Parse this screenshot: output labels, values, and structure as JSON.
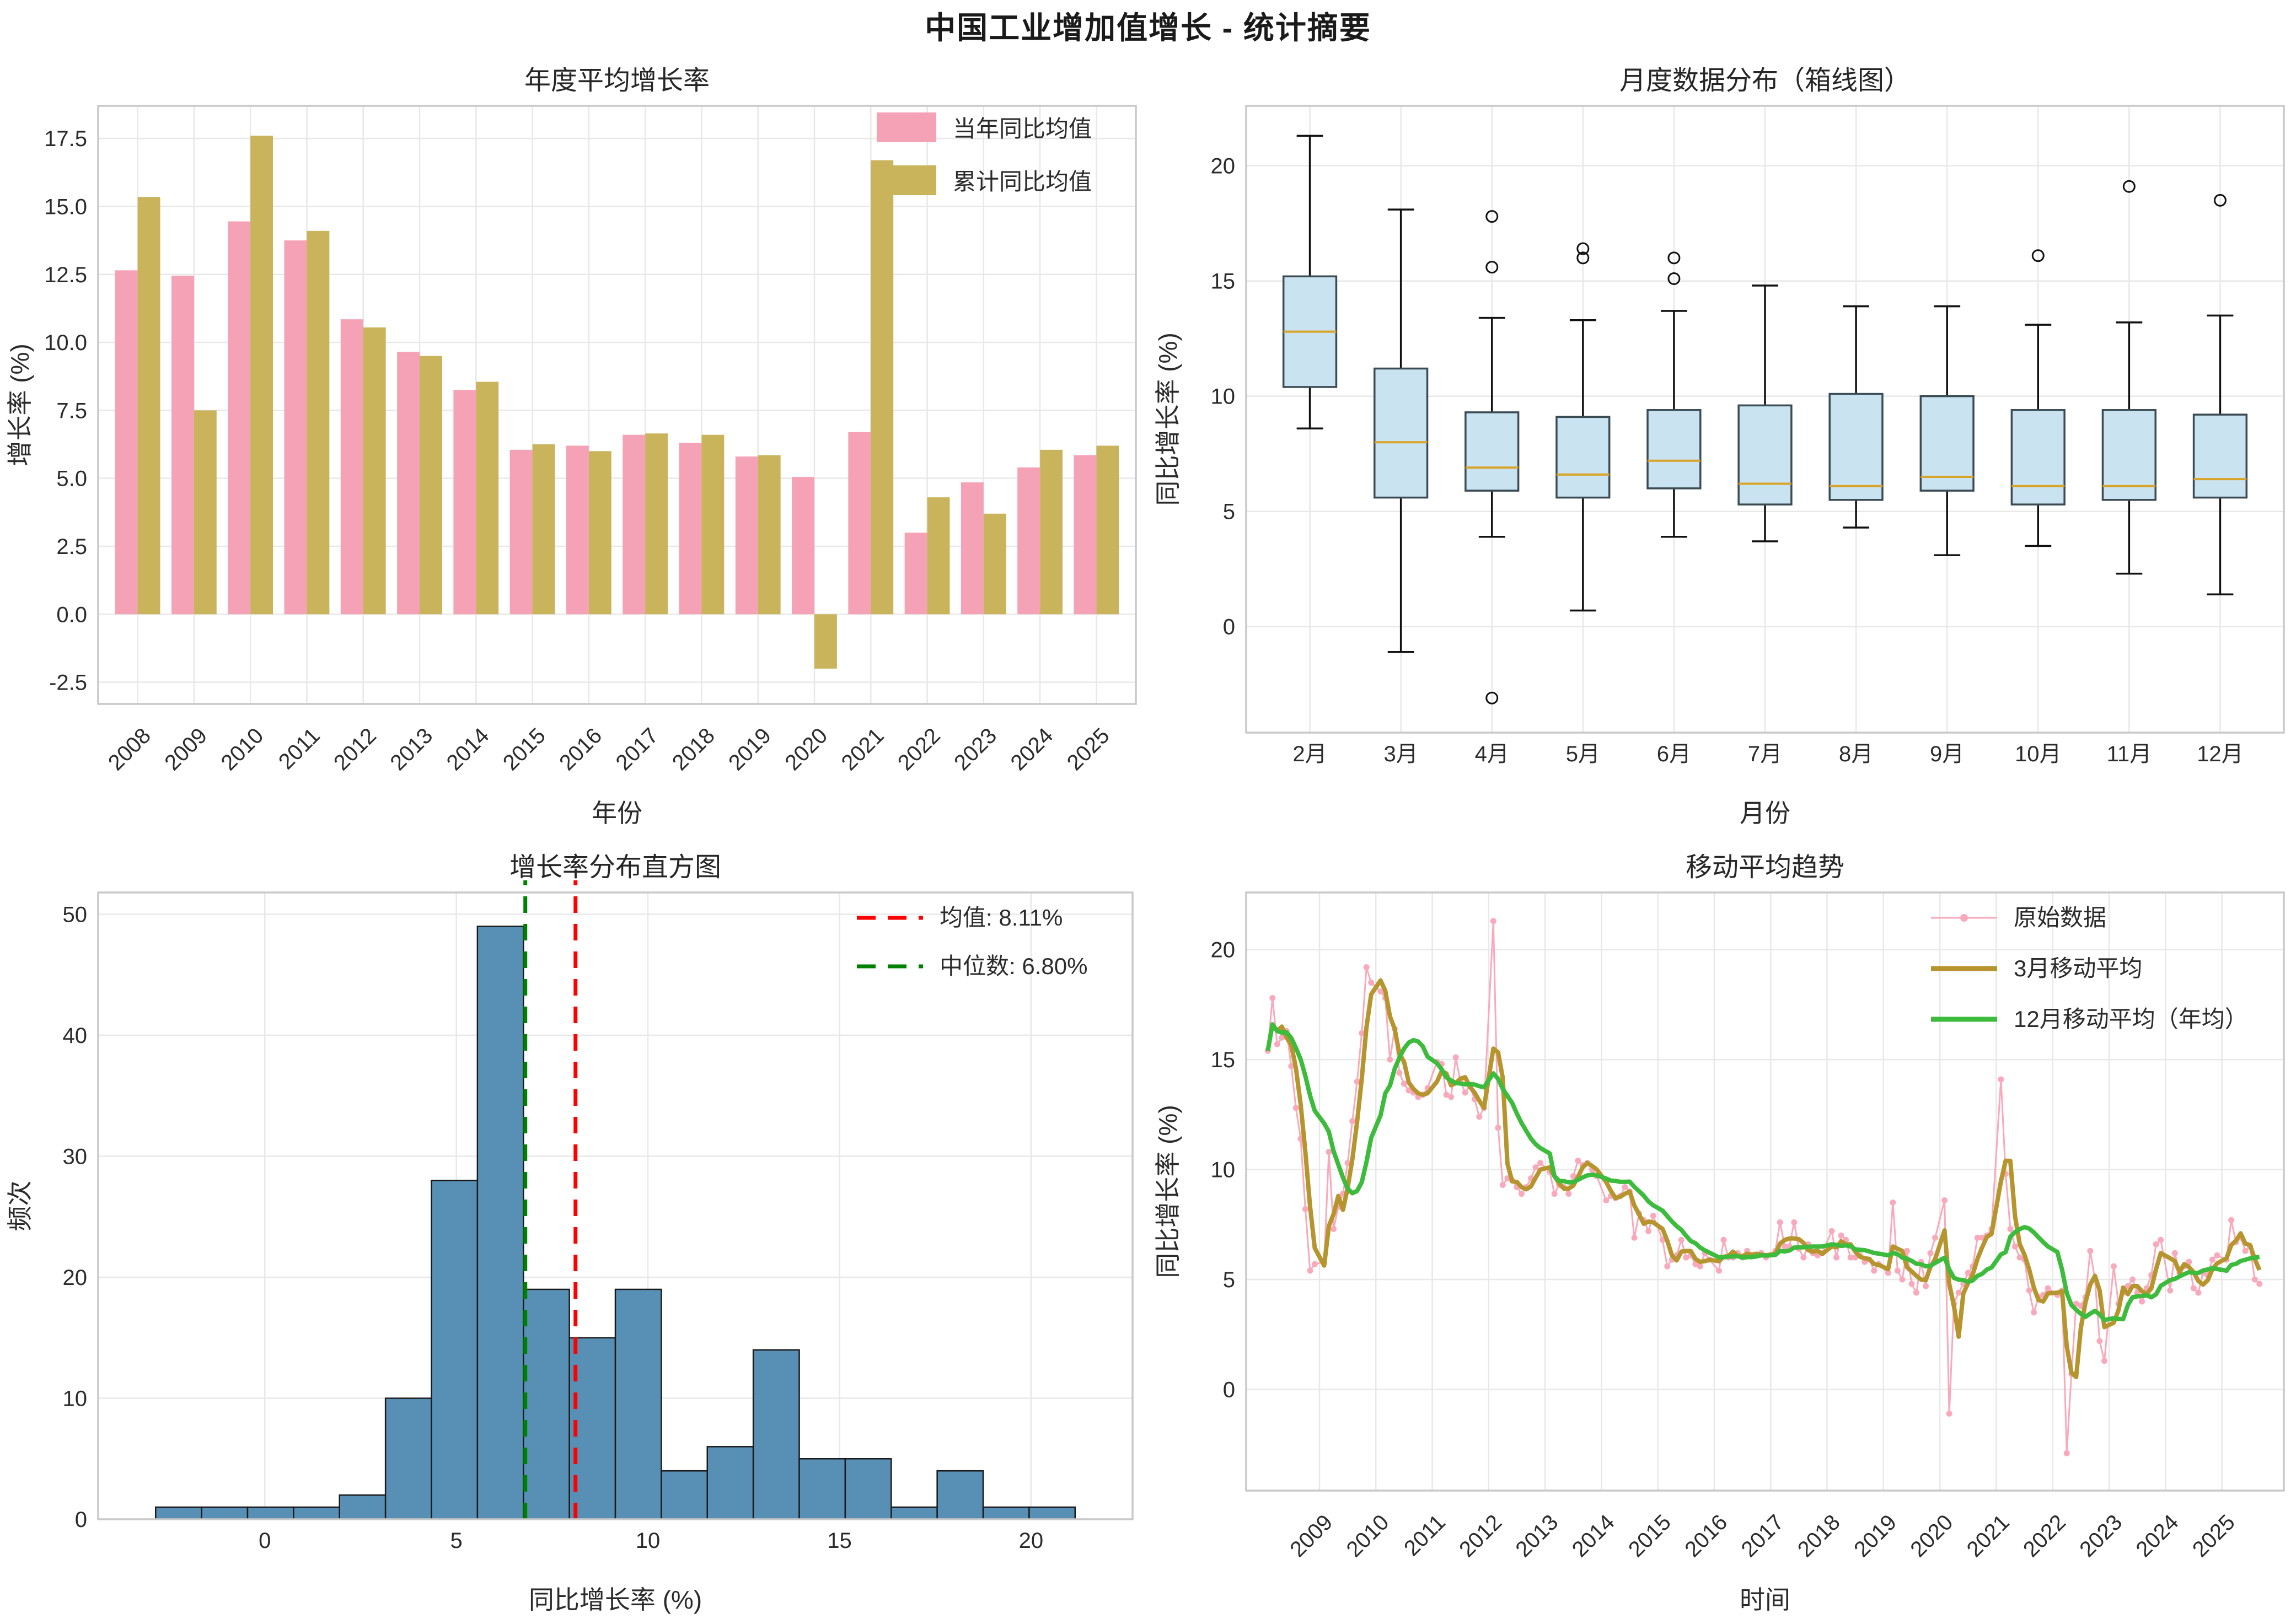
{
  "title": "中国工业增加值增长 - 统计摘要",
  "chart_data": [
    {
      "id": "annual_bars",
      "type": "bar",
      "title": "年度平均增长率",
      "xlabel": "年份",
      "ylabel": "增长率 (%)",
      "grid": true,
      "legend_position": "upper right",
      "rotate_xticks": true,
      "categories": [
        "2008",
        "2009",
        "2010",
        "2011",
        "2012",
        "2013",
        "2014",
        "2015",
        "2016",
        "2017",
        "2018",
        "2019",
        "2020",
        "2021",
        "2022",
        "2023",
        "2024",
        "2025"
      ],
      "series": [
        {
          "name": "当年同比均值",
          "color": "#F6A2B6",
          "values": [
            12.65,
            12.45,
            14.45,
            13.75,
            10.85,
            9.65,
            8.25,
            6.05,
            6.2,
            6.6,
            6.3,
            5.8,
            5.05,
            6.7,
            3.0,
            4.85,
            5.4,
            5.85
          ]
        },
        {
          "name": "累计同比均值",
          "color": "#C9B45C",
          "values": [
            15.35,
            7.5,
            17.6,
            14.1,
            10.55,
            9.5,
            8.55,
            6.25,
            6.0,
            6.65,
            6.6,
            5.85,
            -2.0,
            16.7,
            4.3,
            3.7,
            6.05,
            6.2
          ]
        }
      ],
      "ylim": [
        -3.3,
        18.7
      ],
      "yticks": [
        -2.5,
        0.0,
        2.5,
        5.0,
        7.5,
        10.0,
        12.5,
        15.0,
        17.5
      ],
      "ytick_labels": [
        "-2.5",
        "0.0",
        "2.5",
        "5.0",
        "7.5",
        "10.0",
        "12.5",
        "15.0",
        "17.5"
      ]
    },
    {
      "id": "monthly_box",
      "type": "box",
      "title": "月度数据分布（箱线图）",
      "xlabel": "月份",
      "ylabel": "同比增长率 (%)",
      "grid": true,
      "box_fill": "#C9E3F0",
      "box_edge": "#3B4B54",
      "median_color": "#D9A427",
      "whisker_color": "#111111",
      "categories": [
        "2月",
        "3月",
        "4月",
        "5月",
        "6月",
        "7月",
        "8月",
        "9月",
        "10月",
        "11月",
        "12月"
      ],
      "boxes": [
        {
          "whislo": 8.6,
          "q1": 10.4,
          "med": 12.8,
          "q3": 15.2,
          "whishi": 21.3,
          "outliers": []
        },
        {
          "whislo": -1.1,
          "q1": 5.6,
          "med": 8.0,
          "q3": 11.2,
          "whishi": 18.1,
          "outliers": []
        },
        {
          "whislo": 3.9,
          "q1": 5.9,
          "med": 6.9,
          "q3": 9.3,
          "whishi": 13.4,
          "outliers": [
            17.8,
            15.6,
            -3.1
          ]
        },
        {
          "whislo": 0.7,
          "q1": 5.6,
          "med": 6.6,
          "q3": 9.1,
          "whishi": 13.3,
          "outliers": [
            16.4,
            16.0
          ]
        },
        {
          "whislo": 3.9,
          "q1": 6.0,
          "med": 7.2,
          "q3": 9.4,
          "whishi": 13.7,
          "outliers": [
            16.0,
            15.1
          ]
        },
        {
          "whislo": 3.7,
          "q1": 5.3,
          "med": 6.2,
          "q3": 9.6,
          "whishi": 14.8,
          "outliers": []
        },
        {
          "whislo": 4.3,
          "q1": 5.5,
          "med": 6.1,
          "q3": 10.1,
          "whishi": 13.9,
          "outliers": []
        },
        {
          "whislo": 3.1,
          "q1": 5.9,
          "med": 6.5,
          "q3": 10.0,
          "whishi": 13.9,
          "outliers": []
        },
        {
          "whislo": 3.5,
          "q1": 5.3,
          "med": 6.1,
          "q3": 9.4,
          "whishi": 13.1,
          "outliers": [
            16.1
          ]
        },
        {
          "whislo": 2.3,
          "q1": 5.5,
          "med": 6.1,
          "q3": 9.4,
          "whishi": 13.2,
          "outliers": [
            19.1
          ]
        },
        {
          "whislo": 1.4,
          "q1": 5.6,
          "med": 6.4,
          "q3": 9.2,
          "whishi": 13.5,
          "outliers": [
            18.5
          ]
        }
      ],
      "ylim": [
        -4.6,
        22.6
      ],
      "yticks": [
        0,
        5,
        10,
        15,
        20
      ]
    },
    {
      "id": "growth_histogram",
      "type": "histogram",
      "title": "增长率分布直方图",
      "xlabel": "同比增长率 (%)",
      "ylabel": "频次",
      "grid": true,
      "bar_fill": "#5890B5",
      "bar_edge": "#1A1A1A",
      "bin_start": -2.85,
      "bin_width": 1.2,
      "counts": [
        1,
        1,
        1,
        1,
        2,
        10,
        28,
        49,
        19,
        15,
        19,
        4,
        6,
        14,
        5,
        5,
        1,
        4,
        1,
        1
      ],
      "xlim": [
        -4.35,
        22.65
      ],
      "xticks": [
        0,
        5,
        10,
        15,
        20
      ],
      "ylim": [
        0,
        51.8
      ],
      "yticks": [
        0,
        10,
        20,
        30,
        40,
        50
      ],
      "vlines": [
        {
          "label": "均值: 8.11%",
          "value": 8.11,
          "color": "#FF0000"
        },
        {
          "label": "中位数: 6.80%",
          "value": 6.8,
          "color": "#008000"
        }
      ]
    },
    {
      "id": "moving_average_trend",
      "type": "line",
      "title": "移动平均趋势",
      "xlabel": "时间",
      "ylabel": "同比增长率 (%)",
      "grid": true,
      "rotate_xticks": true,
      "months_covered": "2-12",
      "series_styles": [
        {
          "name": "原始数据",
          "color": "#F9A9BC",
          "kind": "raw"
        },
        {
          "name": "3月移动平均",
          "color": "#B6952E",
          "kind": "ma",
          "window": 3
        },
        {
          "name": "12月移动平均（年均）",
          "color": "#3DBB3D",
          "kind": "ma",
          "window": 12
        }
      ],
      "years": [
        {
          "year": 2008,
          "values": [
            15.4,
            17.8,
            15.7,
            16.0,
            16.3,
            14.7,
            12.8,
            11.4,
            8.2,
            5.4,
            5.7
          ]
        },
        {
          "year": 2009,
          "values": [
            5.8,
            10.8,
            7.3,
            8.3,
            8.9,
            10.3,
            12.2,
            14.0,
            16.2,
            19.2,
            18.5
          ]
        },
        {
          "year": 2010,
          "values": [
            18.1,
            17.8,
            15.0,
            16.4,
            14.4,
            13.9,
            13.6,
            13.5,
            13.3,
            13.4,
            13.7
          ]
        },
        {
          "year": 2011,
          "values": [
            14.9,
            14.8,
            13.4,
            13.3,
            15.1,
            14.0,
            13.5,
            13.8,
            13.2,
            12.4,
            12.8
          ]
        },
        {
          "year": 2012,
          "values": [
            21.3,
            11.9,
            9.3,
            9.6,
            9.5,
            9.2,
            8.9,
            9.2,
            9.6,
            10.1,
            10.3
          ]
        },
        {
          "year": 2013,
          "values": [
            9.9,
            8.9,
            9.3,
            9.2,
            8.9,
            9.7,
            10.4,
            10.2,
            10.3,
            10.0,
            9.7
          ]
        },
        {
          "year": 2014,
          "values": [
            8.6,
            8.8,
            8.7,
            8.8,
            9.2,
            9.0,
            6.9,
            8.0,
            7.7,
            7.2,
            7.9
          ]
        },
        {
          "year": 2015,
          "values": [
            6.8,
            5.6,
            5.9,
            6.1,
            6.8,
            6.0,
            6.1,
            5.7,
            5.6,
            6.2,
            5.9
          ]
        },
        {
          "year": 2016,
          "values": [
            5.4,
            6.8,
            6.0,
            6.0,
            6.2,
            6.0,
            6.3,
            6.1,
            6.1,
            6.2,
            6.0
          ]
        },
        {
          "year": 2017,
          "values": [
            6.3,
            7.6,
            6.5,
            6.5,
            7.6,
            6.4,
            6.0,
            6.6,
            6.2,
            6.1,
            6.2
          ]
        },
        {
          "year": 2018,
          "values": [
            7.2,
            6.0,
            7.0,
            6.8,
            6.0,
            6.0,
            6.1,
            5.8,
            5.9,
            5.4,
            5.7
          ]
        },
        {
          "year": 2019,
          "values": [
            5.3,
            8.5,
            5.4,
            5.0,
            6.3,
            4.8,
            4.4,
            5.8,
            4.7,
            6.2,
            6.9
          ]
        },
        {
          "year": 2020,
          "values": [
            8.6,
            -1.1,
            3.9,
            4.4,
            4.8,
            5.3,
            5.6,
            6.9,
            6.9,
            7.0,
            7.3
          ]
        },
        {
          "year": 2021,
          "values": [
            14.1,
            9.8,
            7.3,
            6.5,
            6.0,
            5.9,
            4.5,
            3.5,
            4.2,
            4.3,
            4.6
          ]
        },
        {
          "year": 2022,
          "values": [
            4.3,
            4.5,
            -2.9,
            0.7,
            3.9,
            3.8,
            4.2,
            6.3,
            5.0,
            2.2,
            1.3
          ]
        },
        {
          "year": 2023,
          "values": [
            5.6,
            3.9,
            4.4,
            4.7,
            5.0,
            4.4,
            4.0,
            4.6,
            5.2,
            6.6,
            6.8
          ]
        },
        {
          "year": 2024,
          "values": [
            4.5,
            6.2,
            5.3,
            5.6,
            5.8,
            4.6,
            4.4,
            5.3,
            5.2,
            5.9,
            6.1
          ]
        },
        {
          "year": 2025,
          "values": [
            5.9,
            7.7,
            6.7,
            6.9,
            6.3,
            6.5,
            5.0,
            4.8
          ]
        }
      ],
      "ylim": [
        -4.6,
        22.6
      ],
      "yticks": [
        0,
        5,
        10,
        15,
        20
      ],
      "xticks": [
        2009,
        2010,
        2011,
        2012,
        2013,
        2014,
        2015,
        2016,
        2017,
        2018,
        2019,
        2020,
        2021,
        2022,
        2023,
        2024,
        2025
      ],
      "xlim": [
        2007.7,
        2026.1
      ]
    }
  ]
}
